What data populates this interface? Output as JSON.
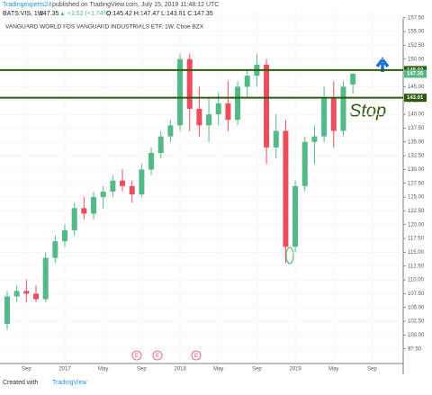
{
  "chart_data": {
    "type": "candlestick",
    "publisher": "Tradingexperts24",
    "published": "published on TradingView.com, July 15, 2019 11:48:12 UTC",
    "symbol": "BATS:VIS, 1W",
    "last": "147.35",
    "change": "▲ +2.52 (+1.74%)",
    "ohlc": "O:145.42 H:147.47 L:143.81 C:147.35",
    "title": "VANGUARD WORLD FDS VANGUARD INDUSTRIALS ETF, 1W, Cboe BZX",
    "categories": [
      null,
      null,
      "Sep",
      null,
      null,
      null,
      "2017",
      null,
      null,
      null,
      "May",
      null,
      null,
      null,
      "Sep",
      null,
      null,
      null,
      "2018",
      null,
      null,
      null,
      "May",
      null,
      null,
      null,
      "Sep",
      null,
      null,
      null,
      "2019",
      null,
      null,
      null,
      "May",
      null,
      null,
      null,
      "Sep"
    ],
    "open": [
      102,
      107,
      108,
      107.5,
      106.5,
      114,
      117,
      119,
      123,
      122,
      125,
      126,
      128,
      127,
      125.5,
      130,
      133,
      136,
      138,
      150,
      141,
      138,
      140,
      142,
      139,
      145,
      147,
      149,
      134,
      137,
      116,
      127,
      135,
      136,
      143,
      137,
      145.42,
      null,
      null
    ],
    "high": [
      108,
      109,
      110,
      109,
      115,
      118,
      120,
      124,
      125,
      126,
      127,
      129,
      130,
      128,
      131,
      134,
      137,
      139,
      151,
      151,
      145,
      143,
      144,
      146,
      146,
      148,
      151,
      150,
      140,
      139,
      128,
      136,
      138,
      145,
      146,
      146,
      147.47,
      null,
      null
    ],
    "low": [
      101,
      106,
      106,
      106,
      106,
      113,
      116,
      118,
      121,
      121,
      123,
      125,
      126,
      124,
      125,
      129,
      132,
      135,
      137,
      137,
      136,
      135,
      138,
      137,
      138,
      143,
      145,
      131,
      132,
      113,
      115,
      126,
      131,
      135,
      134,
      136,
      143.81,
      null,
      null
    ],
    "close": [
      107,
      108,
      107.5,
      106.5,
      114,
      117,
      119,
      123,
      122,
      125,
      126,
      128,
      127,
      125.5,
      130,
      133,
      136,
      138,
      150,
      141,
      138,
      140,
      142,
      139,
      145,
      147,
      149,
      134,
      137,
      116,
      127,
      135,
      136,
      143,
      137,
      145,
      147.35,
      null,
      null
    ],
    "up_color": "#53b987",
    "down_color": "#eb4d5c",
    "ylim": [
      95.5,
      158.6
    ],
    "yticks": [
      {
        "value": 97.5,
        "label": "97.50"
      },
      {
        "value": 100,
        "label": "100.00"
      },
      {
        "value": 102.5,
        "label": "102.50"
      },
      {
        "value": 105,
        "label": "105.00"
      },
      {
        "value": 107.5,
        "label": "107.50"
      },
      {
        "value": 110,
        "label": "110.00"
      },
      {
        "value": 112.5,
        "label": "112.50"
      },
      {
        "value": 115,
        "label": "115.00"
      },
      {
        "value": 117.5,
        "label": "117.50"
      },
      {
        "value": 120,
        "label": "120.00"
      },
      {
        "value": 122.5,
        "label": "122.50"
      },
      {
        "value": 125,
        "label": "125.00"
      },
      {
        "value": 127.5,
        "label": "127.50"
      },
      {
        "value": 130,
        "label": "130.00"
      },
      {
        "value": 132.5,
        "label": "132.50"
      },
      {
        "value": 135,
        "label": "135.00"
      },
      {
        "value": 137.5,
        "label": "137.50"
      },
      {
        "value": 140,
        "label": "140.00"
      },
      {
        "value": 142.5,
        "label": "142.50"
      },
      {
        "value": 145,
        "label": "145.00"
      },
      {
        "value": 147.5,
        "label": "147.50"
      },
      {
        "value": 150,
        "label": "150.00"
      },
      {
        "value": 152.5,
        "label": "152.50"
      },
      {
        "value": 155,
        "label": "155.00"
      },
      {
        "value": 157.5,
        "label": "157.50"
      }
    ],
    "grid": true,
    "price_lines": [
      {
        "value": 148.02,
        "color": "#2e5a0e",
        "line": true
      },
      {
        "value": 147.35,
        "color": "#53b987",
        "line": false
      },
      {
        "value": 143.01,
        "color": "#2e5a0e",
        "line": true
      }
    ],
    "annotation": "Stop",
    "earnings": [
      "E",
      "E",
      "E"
    ],
    "footer_prefix": "Created with",
    "footer_brand": "TradingView"
  }
}
